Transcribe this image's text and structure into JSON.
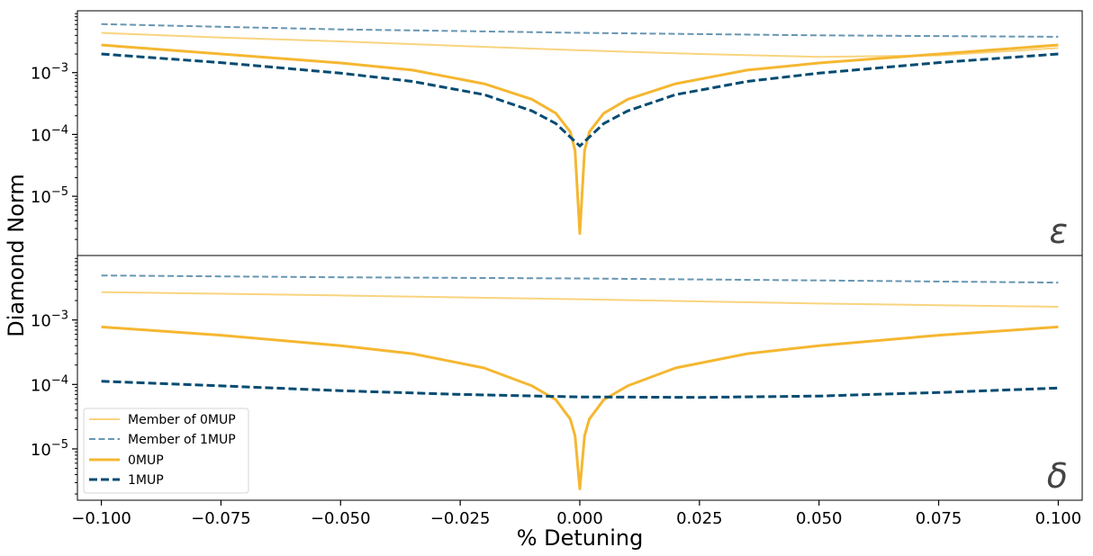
{
  "chart_data": {
    "type": "line",
    "ylabel": "Diamond Norm",
    "xlabel": "% Detuning",
    "x_ticks": [
      "−0.100",
      "−0.075",
      "−0.050",
      "−0.025",
      "0.000",
      "0.025",
      "0.050",
      "0.075",
      "0.100"
    ],
    "xlim": [
      -0.105,
      0.105
    ],
    "x_scale": "linear",
    "y_scale": "log",
    "grid": false,
    "colors": {
      "zero_mup": "#f5b731",
      "member_zero_mup": "#f9d47f",
      "one_mup": "#034b72",
      "member_one_mup": "#6796b2"
    },
    "legend": {
      "placement": "lower-left of bottom panel",
      "entries": [
        {
          "label": "Member of 0MUP",
          "series": "member_zero_mup",
          "style": "solid-thin"
        },
        {
          "label": "Member of 1MUP",
          "series": "member_one_mup",
          "style": "dashed-thin"
        },
        {
          "label": "0MUP",
          "series": "zero_mup",
          "style": "solid-thick"
        },
        {
          "label": "1MUP",
          "series": "one_mup",
          "style": "dashed-thick"
        }
      ]
    },
    "panels": [
      {
        "label": "ε",
        "ylim": [
          1.1e-06,
          0.01
        ],
        "y_ticks": [
          {
            "base": "10",
            "exp": "−3",
            "value": 0.001
          },
          {
            "base": "10",
            "exp": "−4",
            "value": 0.0001
          },
          {
            "base": "10",
            "exp": "−5",
            "value": 1e-05
          }
        ],
        "series": [
          {
            "id": "member_one_mup",
            "x": [
              -0.1,
              -0.075,
              -0.05,
              -0.025,
              0.0,
              0.025,
              0.05,
              0.075,
              0.1
            ],
            "values": [
              0.0061,
              0.0055,
              0.005,
              0.0047,
              0.0044,
              0.0042,
              0.004,
              0.0039,
              0.0038
            ]
          },
          {
            "id": "member_zero_mup",
            "x": [
              -0.1,
              -0.075,
              -0.05,
              -0.025,
              0.0,
              0.025,
              0.05,
              0.075,
              0.1
            ],
            "values": [
              0.0044,
              0.0037,
              0.0032,
              0.0027,
              0.0023,
              0.002,
              0.0018,
              0.0019,
              0.0025
            ]
          },
          {
            "id": "zero_mup",
            "x": [
              -0.1,
              -0.075,
              -0.05,
              -0.035,
              -0.02,
              -0.01,
              -0.005,
              -0.002,
              -0.001,
              0.0,
              0.001,
              0.002,
              0.005,
              0.01,
              0.02,
              0.035,
              0.05,
              0.075,
              0.1
            ],
            "values": [
              0.0028,
              0.002,
              0.00143,
              0.0011,
              0.00066,
              0.00037,
              0.00022,
              0.00011,
              5.5e-05,
              2.5e-06,
              5.5e-05,
              0.00011,
              0.00022,
              0.00037,
              0.00066,
              0.0011,
              0.00143,
              0.002,
              0.0028
            ]
          },
          {
            "id": "one_mup",
            "x": [
              -0.1,
              -0.075,
              -0.05,
              -0.035,
              -0.02,
              -0.01,
              -0.005,
              0.0,
              0.005,
              0.01,
              0.02,
              0.035,
              0.05,
              0.075,
              0.1
            ],
            "values": [
              0.002,
              0.00145,
              0.00098,
              0.00072,
              0.00044,
              0.00024,
              0.00015,
              6.5e-05,
              0.00015,
              0.00024,
              0.00044,
              0.00072,
              0.00098,
              0.00145,
              0.002
            ]
          }
        ]
      },
      {
        "label": "δ",
        "ylim": [
          1.6e-06,
          0.01
        ],
        "y_ticks": [
          {
            "base": "10",
            "exp": "−3",
            "value": 0.001
          },
          {
            "base": "10",
            "exp": "−4",
            "value": 0.0001
          },
          {
            "base": "10",
            "exp": "−5",
            "value": 1e-05
          }
        ],
        "series": [
          {
            "id": "member_one_mup",
            "x": [
              -0.1,
              -0.05,
              0.0,
              0.05,
              0.1
            ],
            "values": [
              0.0049,
              0.0046,
              0.0044,
              0.0041,
              0.0038
            ]
          },
          {
            "id": "member_zero_mup",
            "x": [
              -0.1,
              -0.05,
              0.0,
              0.05,
              0.1
            ],
            "values": [
              0.0027,
              0.0024,
              0.0021,
              0.0018,
              0.0016
            ]
          },
          {
            "id": "zero_mup",
            "x": [
              -0.1,
              -0.075,
              -0.05,
              -0.035,
              -0.02,
              -0.01,
              -0.005,
              -0.002,
              -0.001,
              0.0,
              0.001,
              0.002,
              0.005,
              0.01,
              0.02,
              0.035,
              0.05,
              0.075,
              0.1
            ],
            "values": [
              0.00078,
              0.00058,
              0.0004,
              0.0003,
              0.00018,
              9.5e-05,
              5.8e-05,
              2.9e-05,
              1.6e-05,
              2.4e-06,
              1.6e-05,
              2.9e-05,
              5.8e-05,
              9.5e-05,
              0.00018,
              0.0003,
              0.0004,
              0.00058,
              0.00078
            ]
          },
          {
            "id": "one_mup",
            "x": [
              -0.1,
              -0.075,
              -0.05,
              -0.025,
              0.0,
              0.025,
              0.05,
              0.075,
              0.1
            ],
            "values": [
              0.000112,
              9.5e-05,
              8e-05,
              7e-05,
              6.4e-05,
              6.3e-05,
              6.6e-05,
              7.5e-05,
              8.8e-05
            ]
          }
        ]
      }
    ]
  }
}
